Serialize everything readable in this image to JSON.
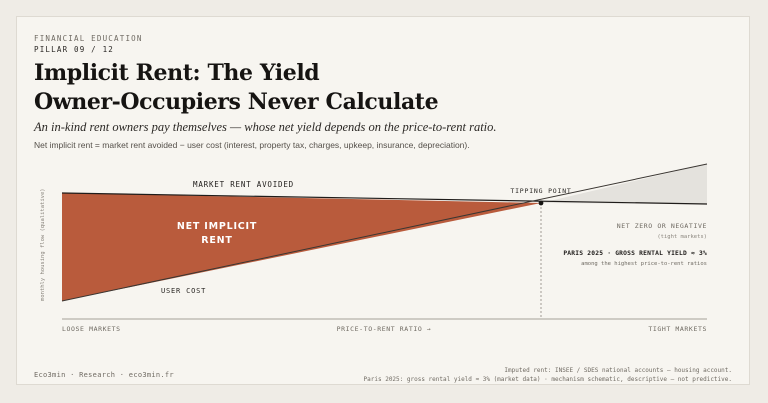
{
  "header": {
    "eyebrow": "FINANCIAL EDUCATION",
    "pillar": "PILLAR 09 / 12",
    "title_line1": "Implicit Rent: The Yield",
    "title_line2": "Owner-Occupiers Never Calculate",
    "subtitle": "An in-kind rent owners pay themselves — whose net yield depends on the price-to-rent ratio.",
    "definition": "Net implicit rent = market rent avoided − user cost (interest, property tax, charges, upkeep, insurance, depreciation)."
  },
  "diagram": {
    "y_axis_label": "monthly housing flow (qualitative)",
    "x_axis_label": "PRICE-TO-RENT RATIO →",
    "x_left_label": "LOOSE MARKETS",
    "x_right_label": "TIGHT MARKETS",
    "market_rent_label": "MARKET RENT AVOIDED",
    "user_cost_label": "USER COST",
    "net_implicit_line1": "NET IMPLICIT",
    "net_implicit_line2": "RENT",
    "tipping_point_label": "TIPPING POINT",
    "net_zero_label": "NET ZERO OR NEGATIVE",
    "net_zero_sub": "(tight markets)",
    "paris_label": "PARIS 2025 · GROSS RENTAL YIELD ≈ 3%",
    "paris_sub": "among the highest price-to-rent ratios",
    "colors": {
      "net_rent_fill": "#b95b3c",
      "negative_fill": "#e4e2dd",
      "market_rent_line": "#1f1c1a",
      "user_cost_line": "#3a3632",
      "axis": "#8a857d"
    }
  },
  "footer": {
    "brand": "Eco3min · Research · eco3min.fr",
    "source_line1": "Imputed rent: INSEE / SDES national accounts — housing account.",
    "source_line2": "Paris 2025: gross rental yield ≈ 3% (market data) · mechanism schematic, descriptive — not predictive."
  }
}
